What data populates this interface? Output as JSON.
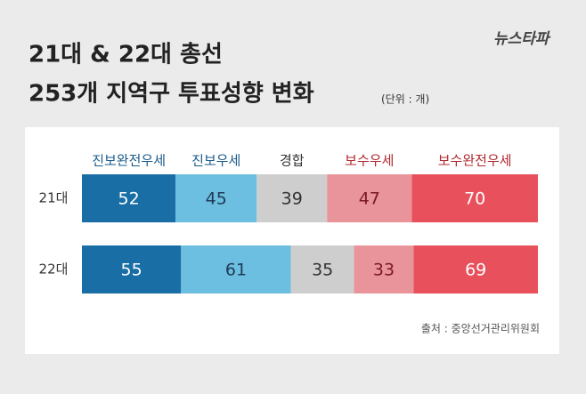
{
  "chart_data": {
    "type": "stacked-bar",
    "orientation": "horizontal",
    "logo": "뉴스타파",
    "title": "21대 & 22대 총선",
    "subtitle": "253개 지역구 투표성향 변화",
    "unit_note": "(단위 : 개)",
    "source": "출처 : 중앙선거관리위원회",
    "categories": [
      "21대",
      "22대"
    ],
    "xlim": [
      0,
      253
    ],
    "series": [
      {
        "name": "진보완전우세",
        "color": "#1a6ea6",
        "values": [
          52,
          55
        ]
      },
      {
        "name": "진보우세",
        "color": "#6cbfe0",
        "values": [
          45,
          61
        ]
      },
      {
        "name": "경합",
        "color": "#cecece",
        "values": [
          39,
          35
        ]
      },
      {
        "name": "보수우세",
        "color": "#e8949a",
        "values": [
          47,
          33
        ]
      },
      {
        "name": "보수완전우세",
        "color": "#e8515b",
        "values": [
          70,
          69
        ]
      }
    ]
  }
}
